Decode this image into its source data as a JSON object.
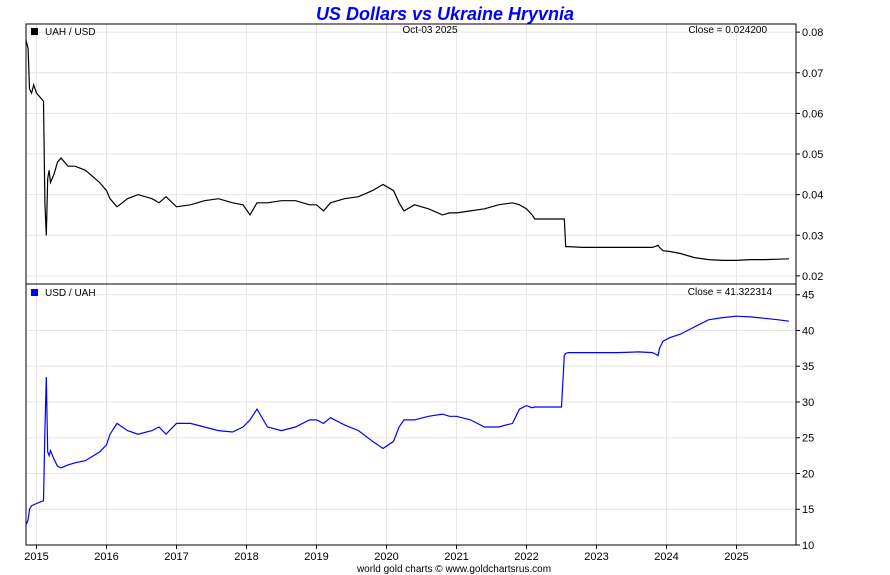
{
  "chart_data": {
    "type": "line",
    "title": "US Dollars vs Ukraine Hryvnia",
    "date_label": "Oct-03  2025",
    "footer": "world gold charts © www.goldchartsrus.com",
    "x_range": [
      2014.85,
      2025.85
    ],
    "x_ticks": [
      "2015",
      "2016",
      "2017",
      "2018",
      "2019",
      "2020",
      "2021",
      "2022",
      "2023",
      "2024",
      "2025"
    ],
    "x_tick_values": [
      2015,
      2016,
      2017,
      2018,
      2019,
      2020,
      2021,
      2022,
      2023,
      2024,
      2025
    ],
    "panels": [
      {
        "legend": "UAH / USD",
        "close_label": "Close = 0.024200",
        "color": "#000000",
        "ylim": [
          0.018,
          0.082
        ],
        "y_ticks": [
          "0.02",
          "0.03",
          "0.04",
          "0.05",
          "0.06",
          "0.07",
          "0.08"
        ],
        "y_tick_values": [
          0.02,
          0.03,
          0.04,
          0.05,
          0.06,
          0.07,
          0.08
        ],
        "series": {
          "x": [
            2014.85,
            2014.88,
            2014.9,
            2014.93,
            2014.96,
            2015.0,
            2015.05,
            2015.1,
            2015.12,
            2015.14,
            2015.16,
            2015.18,
            2015.2,
            2015.25,
            2015.3,
            2015.35,
            2015.45,
            2015.55,
            2015.7,
            2015.9,
            2016.0,
            2016.05,
            2016.15,
            2016.3,
            2016.45,
            2016.65,
            2016.75,
            2016.85,
            2017.0,
            2017.2,
            2017.4,
            2017.6,
            2017.8,
            2017.95,
            2018.05,
            2018.15,
            2018.3,
            2018.5,
            2018.7,
            2018.9,
            2019.0,
            2019.1,
            2019.2,
            2019.4,
            2019.6,
            2019.8,
            2019.95,
            2020.1,
            2020.18,
            2020.25,
            2020.4,
            2020.6,
            2020.8,
            2020.9,
            2021.0,
            2021.2,
            2021.4,
            2021.6,
            2021.8,
            2021.9,
            2022.0,
            2022.08,
            2022.12,
            2022.3,
            2022.5,
            2022.54,
            2022.56,
            2022.6,
            2022.8,
            2023.0,
            2023.3,
            2023.6,
            2023.8,
            2023.88,
            2023.9,
            2023.95,
            2024.05,
            2024.2,
            2024.4,
            2024.6,
            2024.8,
            2025.0,
            2025.2,
            2025.4,
            2025.6,
            2025.75
          ],
          "y": [
            0.078,
            0.076,
            0.066,
            0.065,
            0.067,
            0.065,
            0.064,
            0.063,
            0.038,
            0.03,
            0.044,
            0.046,
            0.043,
            0.045,
            0.048,
            0.049,
            0.047,
            0.047,
            0.046,
            0.043,
            0.041,
            0.039,
            0.037,
            0.039,
            0.04,
            0.039,
            0.038,
            0.0395,
            0.037,
            0.0375,
            0.0385,
            0.039,
            0.038,
            0.0375,
            0.035,
            0.038,
            0.038,
            0.0385,
            0.0385,
            0.0375,
            0.0375,
            0.036,
            0.038,
            0.039,
            0.0395,
            0.041,
            0.0425,
            0.041,
            0.038,
            0.036,
            0.0375,
            0.0365,
            0.035,
            0.0355,
            0.0355,
            0.036,
            0.0365,
            0.0375,
            0.038,
            0.0375,
            0.0365,
            0.035,
            0.034,
            0.034,
            0.034,
            0.034,
            0.0272,
            0.0272,
            0.027,
            0.027,
            0.027,
            0.027,
            0.027,
            0.0275,
            0.027,
            0.0262,
            0.026,
            0.0255,
            0.0245,
            0.024,
            0.0238,
            0.0238,
            0.024,
            0.024,
            0.0241,
            0.0242
          ]
        }
      },
      {
        "legend": "USD / UAH",
        "close_label": "Close = 41.322314",
        "color": "#0000ff",
        "ylim": [
          10,
          46.5
        ],
        "y_ticks": [
          "10",
          "15",
          "20",
          "25",
          "30",
          "35",
          "40",
          "45"
        ],
        "y_tick_values": [
          10,
          15,
          20,
          25,
          30,
          35,
          40,
          45
        ],
        "series": {
          "x": [
            2014.85,
            2014.88,
            2014.9,
            2014.93,
            2015.0,
            2015.05,
            2015.1,
            2015.12,
            2015.14,
            2015.16,
            2015.18,
            2015.2,
            2015.25,
            2015.3,
            2015.35,
            2015.45,
            2015.55,
            2015.7,
            2015.9,
            2016.0,
            2016.05,
            2016.15,
            2016.3,
            2016.45,
            2016.65,
            2016.75,
            2016.85,
            2017.0,
            2017.2,
            2017.4,
            2017.6,
            2017.8,
            2017.95,
            2018.05,
            2018.15,
            2018.3,
            2018.5,
            2018.7,
            2018.9,
            2019.0,
            2019.1,
            2019.2,
            2019.4,
            2019.6,
            2019.8,
            2019.95,
            2020.1,
            2020.18,
            2020.25,
            2020.4,
            2020.6,
            2020.8,
            2020.9,
            2021.0,
            2021.2,
            2021.4,
            2021.6,
            2021.8,
            2021.9,
            2022.0,
            2022.08,
            2022.12,
            2022.3,
            2022.5,
            2022.54,
            2022.56,
            2022.6,
            2022.8,
            2023.0,
            2023.3,
            2023.6,
            2023.8,
            2023.88,
            2023.9,
            2023.95,
            2024.05,
            2024.2,
            2024.4,
            2024.6,
            2024.8,
            2025.0,
            2025.2,
            2025.4,
            2025.6,
            2025.75
          ],
          "y": [
            12.8,
            13.5,
            15.0,
            15.5,
            15.8,
            16.0,
            16.2,
            26.0,
            33.5,
            23.0,
            22.5,
            23.2,
            22.0,
            21.0,
            20.8,
            21.2,
            21.5,
            21.8,
            23.0,
            24.0,
            25.5,
            27.0,
            26.0,
            25.5,
            26.0,
            26.5,
            25.5,
            27.0,
            27.0,
            26.5,
            26.0,
            25.8,
            26.5,
            27.5,
            29.0,
            26.5,
            26.0,
            26.5,
            27.5,
            27.5,
            27.0,
            27.8,
            26.8,
            26.0,
            24.5,
            23.5,
            24.5,
            26.5,
            27.5,
            27.5,
            28.0,
            28.3,
            28.0,
            28.0,
            27.5,
            26.5,
            26.5,
            27.0,
            29.0,
            29.5,
            29.2,
            29.3,
            29.3,
            29.3,
            36.5,
            36.8,
            36.9,
            36.9,
            36.9,
            36.9,
            37.0,
            36.9,
            36.5,
            37.5,
            38.5,
            39.0,
            39.5,
            40.5,
            41.5,
            41.8,
            42.0,
            41.9,
            41.7,
            41.5,
            41.3
          ]
        }
      }
    ]
  }
}
